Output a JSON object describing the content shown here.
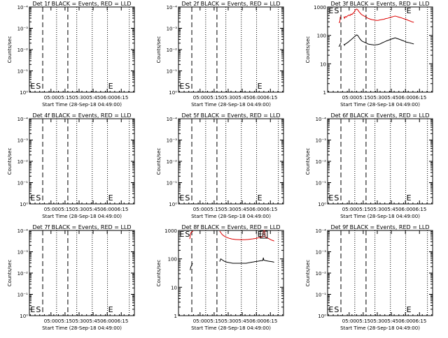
{
  "figure": {
    "xlabel": "Start Time (28-Sep-18 04:49:00)",
    "ylabel": "Counts/sec",
    "x_tick_labels": [
      "05:00",
      "05:15",
      "05:30",
      "05:45",
      "06:00",
      "06:15"
    ],
    "log_tick_labels": [
      "10⁰",
      "10⁻¹",
      "10⁻²",
      "10⁻³",
      "10⁻⁴"
    ],
    "count_tick_labels": [
      "1",
      "10",
      "100",
      "1000"
    ],
    "marker_labels": [
      "E",
      "S",
      "E",
      "B"
    ],
    "colors": {
      "events": "#000000",
      "lld": "#dd0000",
      "axes": "#000000"
    }
  },
  "chart_data": [
    {
      "title": "Det 1f BLACK = Events, RED = LLD",
      "type": "line",
      "yscale": "log",
      "y_tick_set": "log",
      "has_data": false
    },
    {
      "title": "Det 2f BLACK = Events, RED = LLD",
      "type": "line",
      "yscale": "log",
      "y_tick_set": "log",
      "has_data": false
    },
    {
      "title": "Det 3f BLACK = Events, RED = LLD",
      "type": "line",
      "yscale": "log",
      "y_tick_set": "count",
      "ylim": [
        1,
        1000
      ],
      "has_data": true,
      "series": [
        {
          "key": "lld",
          "x": [
            0,
            0.5,
            1,
            1.5,
            2.2,
            5.5,
            6,
            7,
            8,
            9,
            10,
            11,
            12,
            13,
            14,
            15,
            16,
            17,
            18,
            19,
            20,
            21,
            22,
            23,
            24,
            25,
            26,
            27,
            28,
            29,
            30,
            31,
            32,
            33,
            34,
            35,
            36,
            37,
            38,
            39,
            40,
            41,
            42,
            43,
            44,
            45,
            46,
            47,
            48,
            49,
            50,
            51,
            52,
            53,
            54,
            55,
            56,
            57,
            58,
            59,
            60,
            61,
            62,
            63,
            64,
            65,
            66,
            67,
            68,
            69,
            70,
            71,
            72,
            73,
            74,
            75,
            76,
            77,
            78,
            79,
            80
          ],
          "y": [
            280,
            290,
            290,
            440,
            460,
            460,
            400,
            460,
            440,
            480,
            500,
            520,
            500,
            560,
            540,
            600,
            610,
            740,
            800,
            850,
            800,
            720,
            650,
            600,
            550,
            520,
            500,
            480,
            460,
            440,
            420,
            400,
            390,
            380,
            370,
            360,
            355,
            350,
            345,
            340,
            340,
            338,
            340,
            345,
            350,
            355,
            360,
            365,
            370,
            380,
            390,
            395,
            400,
            410,
            420,
            430,
            440,
            450,
            460,
            470,
            480,
            470,
            460,
            450,
            440,
            430,
            420,
            410,
            400,
            390,
            380,
            370,
            360,
            350,
            340,
            330,
            320,
            310,
            300,
            295,
            290
          ]
        },
        {
          "key": "events",
          "x": [
            0,
            0.5,
            1,
            1.5,
            2.2,
            5.5,
            6,
            7,
            8,
            9,
            10,
            11,
            12,
            13,
            14,
            15,
            16,
            17,
            18,
            19,
            20,
            21,
            22,
            23,
            24,
            25,
            26,
            27,
            28,
            29,
            30,
            31,
            32,
            33,
            34,
            35,
            36,
            37,
            38,
            39,
            40,
            41,
            42,
            43,
            44,
            45,
            46,
            47,
            48,
            49,
            50,
            51,
            52,
            53,
            54,
            55,
            56,
            57,
            58,
            59,
            60,
            61,
            62,
            63,
            64,
            65,
            66,
            67,
            68,
            69,
            70,
            71,
            72,
            73,
            74,
            75,
            76,
            77,
            78,
            79,
            80
          ],
          "y": [
            40,
            42,
            45,
            50,
            52,
            50,
            45,
            50,
            52,
            55,
            58,
            62,
            66,
            70,
            75,
            80,
            86,
            92,
            98,
            104,
            100,
            90,
            80,
            72,
            66,
            62,
            60,
            58,
            56,
            54,
            52,
            50,
            49,
            48,
            48,
            47,
            47,
            46,
            46,
            46,
            47,
            47,
            48,
            49,
            50,
            52,
            54,
            56,
            58,
            60,
            62,
            64,
            66,
            68,
            70,
            72,
            74,
            76,
            78,
            80,
            82,
            80,
            78,
            76,
            74,
            72,
            70,
            68,
            66,
            64,
            62,
            60,
            58,
            57,
            56,
            55,
            54,
            53,
            52,
            51,
            50
          ]
        }
      ]
    },
    {
      "title": "Det 4f BLACK = Events, RED = LLD",
      "type": "line",
      "yscale": "log",
      "y_tick_set": "log",
      "has_data": false
    },
    {
      "title": "Det 5f BLACK = Events, RED = LLD",
      "type": "line",
      "yscale": "log",
      "y_tick_set": "log",
      "has_data": false
    },
    {
      "title": "Det 6f BLACK = Events, RED = LLD",
      "type": "line",
      "yscale": "log",
      "y_tick_set": "log",
      "has_data": false
    },
    {
      "title": "Det 7f BLACK = Events, RED = LLD",
      "type": "line",
      "yscale": "log",
      "y_tick_set": "log",
      "has_data": false
    },
    {
      "title": "Det 8f BLACK = Events, RED = LLD",
      "type": "line",
      "yscale": "log",
      "y_tick_set": "count",
      "ylim": [
        1,
        1000
      ],
      "has_data": true,
      "series": [
        {
          "key": "lld",
          "x": [
            0,
            1,
            2,
            3,
            3.5,
            32,
            33,
            34,
            35,
            36,
            37,
            38,
            39,
            40,
            41,
            42,
            43,
            44,
            45,
            46,
            47,
            48,
            49,
            50,
            51,
            52,
            53,
            54,
            55,
            56,
            57,
            58,
            59,
            60,
            61,
            62,
            63,
            64,
            65,
            66,
            67,
            68,
            69,
            70,
            71,
            72,
            73,
            74,
            75,
            76,
            77,
            78,
            78.5,
            79,
            80,
            80.5,
            81,
            82,
            83,
            84,
            85,
            86,
            87,
            88,
            89,
            90
          ],
          "y": [
            500,
            800,
            880,
            920,
            950,
            950,
            850,
            760,
            700,
            660,
            630,
            600,
            580,
            560,
            545,
            530,
            520,
            510,
            500,
            495,
            490,
            485,
            480,
            478,
            476,
            475,
            474,
            473,
            472,
            472,
            472,
            473,
            474,
            476,
            478,
            480,
            485,
            490,
            495,
            500,
            505,
            510,
            515,
            520,
            530,
            540,
            550,
            560,
            570,
            580,
            590,
            600,
            950,
            1000,
            1000,
            600,
            580,
            560,
            540,
            520,
            500,
            480,
            460,
            450,
            440,
            420
          ]
        },
        {
          "key": "events",
          "x": [
            0.5,
            1,
            2,
            3,
            32,
            33,
            34,
            35,
            36,
            37,
            38,
            39,
            40,
            41,
            42,
            43,
            44,
            45,
            46,
            47,
            48,
            49,
            50,
            51,
            52,
            53,
            54,
            55,
            56,
            57,
            58,
            59,
            60,
            61,
            62,
            63,
            64,
            65,
            66,
            67,
            68,
            69,
            70,
            71,
            72,
            73,
            74,
            75,
            76,
            77,
            78,
            78.5,
            79,
            80,
            81,
            82,
            83,
            84,
            85,
            86,
            87,
            88,
            89,
            90
          ],
          "y": [
            40,
            50,
            60,
            70,
            80,
            100,
            96,
            90,
            86,
            82,
            80,
            78,
            76,
            75,
            74,
            73,
            72,
            71,
            70,
            70,
            70,
            70,
            70,
            70,
            70,
            70,
            70,
            70,
            70,
            70,
            70,
            70,
            70,
            71,
            72,
            73,
            74,
            75,
            76,
            77,
            78,
            79,
            80,
            81,
            82,
            83,
            84,
            85,
            86,
            87,
            88,
            110,
            90,
            88,
            86,
            85,
            84,
            83,
            82,
            81,
            80,
            79,
            78,
            76
          ]
        }
      ]
    },
    {
      "title": "Det 9f BLACK = Events, RED = LLD",
      "type": "line",
      "yscale": "log",
      "y_tick_set": "log",
      "has_data": false
    }
  ]
}
